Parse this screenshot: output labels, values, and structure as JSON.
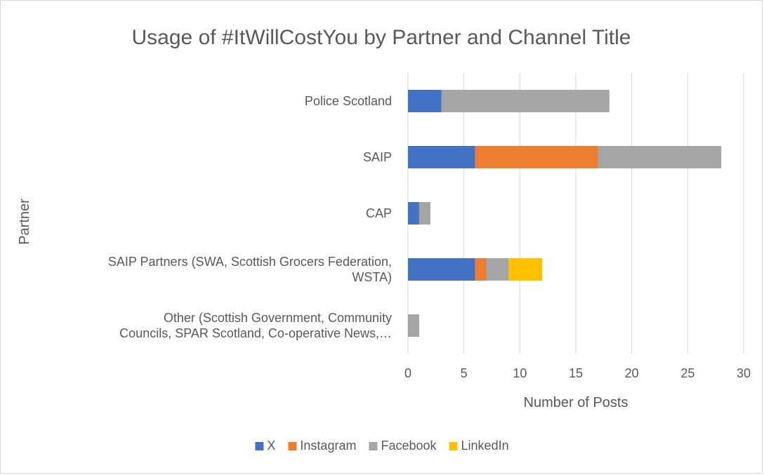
{
  "chart_data": {
    "type": "bar",
    "orientation": "horizontal",
    "stacked": true,
    "title": "Usage of #ItWillCostYou by Partner and Channel  Title",
    "xlabel": "Number of Posts",
    "ylabel": "Partner",
    "xlim": [
      0,
      30
    ],
    "x_ticks": [
      0,
      5,
      10,
      15,
      20,
      25,
      30
    ],
    "grid": true,
    "legend_position": "bottom",
    "categories": [
      [
        "Police Scotland"
      ],
      [
        "SAIP"
      ],
      [
        "CAP"
      ],
      [
        "SAIP Partners (SWA, Scottish Grocers Federation,",
        "WSTA)"
      ],
      [
        "Other (Scottish Government, Community",
        "Councils, SPAR Scotland, Co-operative News,…"
      ]
    ],
    "series": [
      {
        "name": "X",
        "color": "#4472C4",
        "values": [
          3,
          6,
          1,
          6,
          0
        ]
      },
      {
        "name": "Instagram",
        "color": "#ED7D31",
        "values": [
          0,
          11,
          0,
          1,
          0
        ]
      },
      {
        "name": "Facebook",
        "color": "#A5A5A5",
        "values": [
          15,
          11,
          1,
          2,
          1
        ]
      },
      {
        "name": "LinkedIn",
        "color": "#FFC000",
        "values": [
          0,
          0,
          0,
          3,
          0
        ]
      }
    ]
  }
}
